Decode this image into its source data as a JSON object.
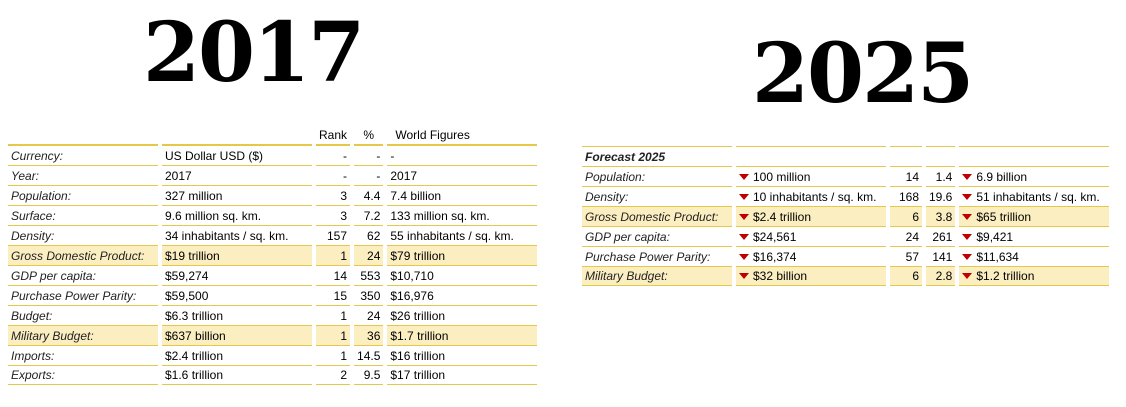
{
  "year_left": "2017",
  "year_right": "2025",
  "table_2017": {
    "headers": {
      "rank": "Rank",
      "pct": "%",
      "world": "World Figures"
    },
    "rows": [
      {
        "label": "Currency:",
        "value": "US Dollar USD ($)",
        "rank": "-",
        "pct": "-",
        "world": "-"
      },
      {
        "label": "Year:",
        "value": "2017",
        "rank": "-",
        "pct": "-",
        "world": "2017"
      },
      {
        "label": "Population:",
        "value": "327 million",
        "rank": "3",
        "pct": "4.4",
        "world": "7.4 billion"
      },
      {
        "label": "Surface:",
        "value": "9.6 million sq. km.",
        "rank": "3",
        "pct": "7.2",
        "world": "133 million sq. km."
      },
      {
        "label": "Density:",
        "value": "34 inhabitants / sq. km.",
        "rank": "157",
        "pct": "62",
        "world": "55 inhabitants / sq. km."
      },
      {
        "label": "Gross Domestic Product:",
        "value": "$19 trillion",
        "rank": "1",
        "pct": "24",
        "world": "$79 trillion"
      },
      {
        "label": "GDP per capita:",
        "value": "$59,274",
        "rank": "14",
        "pct": "553",
        "world": "$10,710"
      },
      {
        "label": "Purchase Power Parity:",
        "value": "$59,500",
        "rank": "15",
        "pct": "350",
        "world": "$16,976"
      },
      {
        "label": "Budget:",
        "value": "$6.3 trillion",
        "rank": "1",
        "pct": "24",
        "world": "$26 trillion"
      },
      {
        "label": "Military Budget:",
        "value": "$637 billion",
        "rank": "1",
        "pct": "36",
        "world": "$1.7 trillion"
      },
      {
        "label": "Imports:",
        "value": "$2.4 trillion",
        "rank": "1",
        "pct": "14.5",
        "world": "$16 trillion"
      },
      {
        "label": "Exports:",
        "value": "$1.6 trillion",
        "rank": "2",
        "pct": "9.5",
        "world": "$17 trillion"
      }
    ]
  },
  "table_2025": {
    "title": "Forecast 2025",
    "rows": [
      {
        "label": "Population:",
        "value": "100 million",
        "rank": "14",
        "pct": "1.4",
        "world": "6.9 billion"
      },
      {
        "label": "Density:",
        "value": "10 inhabitants / sq. km.",
        "rank": "168",
        "pct": "19.6",
        "world": "51 inhabitants / sq. km."
      },
      {
        "label": "Gross Domestic Product:",
        "value": "$2.4 trillion",
        "rank": "6",
        "pct": "3.8",
        "world": "$65 trillion"
      },
      {
        "label": "GDP per capita:",
        "value": "$24,561",
        "rank": "24",
        "pct": "261",
        "world": "$9,421"
      },
      {
        "label": "Purchase Power Parity:",
        "value": "$16,374",
        "rank": "57",
        "pct": "141",
        "world": "$11,634"
      },
      {
        "label": "Military Budget:",
        "value": "$32 billion",
        "rank": "6",
        "pct": "2.8",
        "world": "$1.2 trillion"
      }
    ]
  },
  "colors": {
    "row_highlight": "#fbefc2",
    "rule": "#e5c84a",
    "down_arrow": "#c00000"
  },
  "icons": {
    "trend": "down-arrow-icon"
  }
}
